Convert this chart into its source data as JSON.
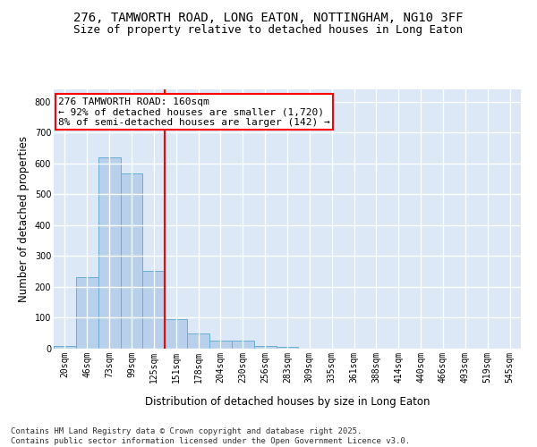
{
  "title_line1": "276, TAMWORTH ROAD, LONG EATON, NOTTINGHAM, NG10 3FF",
  "title_line2": "Size of property relative to detached houses in Long Eaton",
  "xlabel": "Distribution of detached houses by size in Long Eaton",
  "ylabel": "Number of detached properties",
  "bar_labels": [
    "20sqm",
    "46sqm",
    "73sqm",
    "99sqm",
    "125sqm",
    "151sqm",
    "178sqm",
    "204sqm",
    "230sqm",
    "256sqm",
    "283sqm",
    "309sqm",
    "335sqm",
    "361sqm",
    "388sqm",
    "414sqm",
    "440sqm",
    "466sqm",
    "493sqm",
    "519sqm",
    "545sqm"
  ],
  "bar_values": [
    10,
    232,
    620,
    568,
    252,
    97,
    50,
    25,
    25,
    10,
    5,
    0,
    0,
    0,
    0,
    0,
    0,
    0,
    0,
    0,
    0
  ],
  "bar_color": "#b8d0eb",
  "bar_edge_color": "#6aaed6",
  "vline_index": 5,
  "vline_color": "red",
  "annotation_text": "276 TAMWORTH ROAD: 160sqm\n← 92% of detached houses are smaller (1,720)\n8% of semi-detached houses are larger (142) →",
  "annotation_box_color": "white",
  "annotation_box_edge_color": "red",
  "ylim": [
    0,
    840
  ],
  "yticks": [
    0,
    100,
    200,
    300,
    400,
    500,
    600,
    700,
    800
  ],
  "background_color": "#dce8f5",
  "grid_color": "white",
  "footer_line1": "Contains HM Land Registry data © Crown copyright and database right 2025.",
  "footer_line2": "Contains public sector information licensed under the Open Government Licence v3.0.",
  "title_fontsize": 10,
  "subtitle_fontsize": 9,
  "axis_label_fontsize": 8.5,
  "tick_fontsize": 7,
  "annotation_fontsize": 8,
  "footer_fontsize": 6.5
}
